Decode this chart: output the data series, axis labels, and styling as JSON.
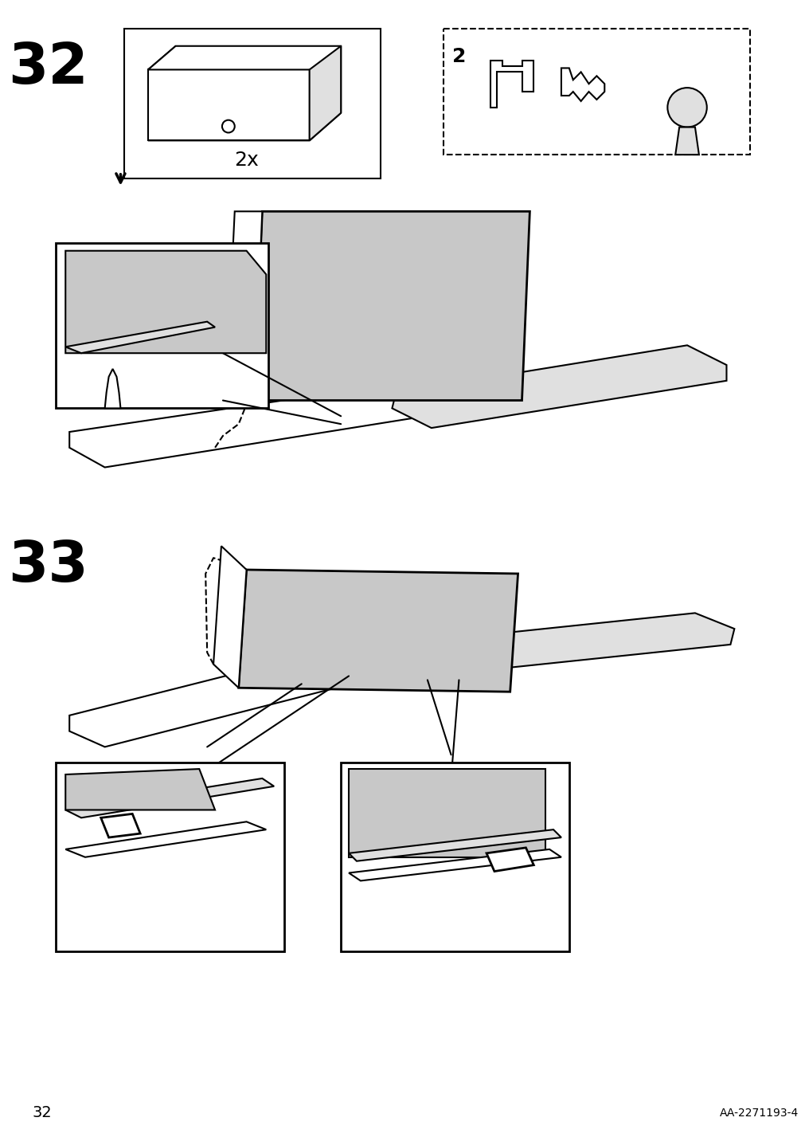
{
  "page_number": "32",
  "doc_id": "AA-2271193-4",
  "background_color": "#ffffff",
  "line_color": "#000000",
  "gray_fill": "#c8c8c8",
  "light_gray": "#e0e0e0",
  "step32_number": "32",
  "step33_number": "33",
  "multiplier_text": "2x",
  "parts_number": "2",
  "figsize": [
    10.12,
    14.32
  ],
  "dpi": 100
}
